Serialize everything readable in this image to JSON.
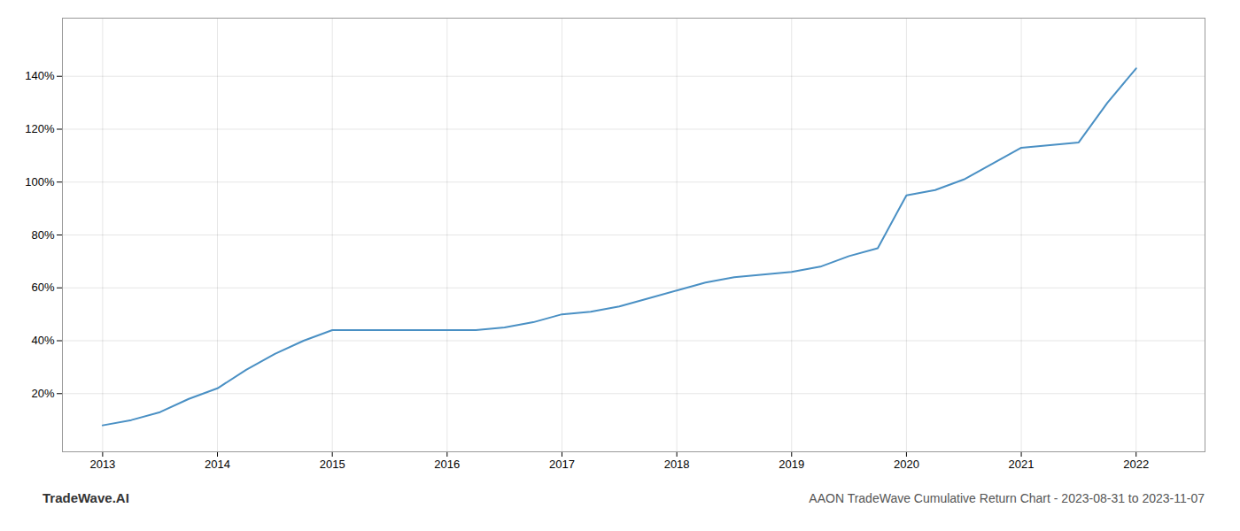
{
  "chart_data": {
    "type": "line",
    "title": "AAON TradeWave Cumulative Return Chart - 2023-08-31 to 2023-11-07",
    "annotations": [
      "TradeWave.AI"
    ],
    "x": [
      2013.0,
      2013.25,
      2013.5,
      2013.75,
      2014.0,
      2014.25,
      2014.5,
      2014.75,
      2015.0,
      2015.25,
      2015.5,
      2015.75,
      2016.0,
      2016.25,
      2016.5,
      2016.75,
      2017.0,
      2017.25,
      2017.5,
      2017.75,
      2018.0,
      2018.25,
      2018.5,
      2018.75,
      2019.0,
      2019.25,
      2019.5,
      2019.75,
      2020.0,
      2020.25,
      2020.5,
      2020.75,
      2021.0,
      2021.25,
      2021.5,
      2021.75,
      2022.0
    ],
    "values": [
      0.08,
      0.1,
      0.13,
      0.18,
      0.22,
      0.29,
      0.35,
      0.4,
      0.44,
      0.44,
      0.44,
      0.44,
      0.44,
      0.44,
      0.45,
      0.47,
      0.5,
      0.51,
      0.53,
      0.56,
      0.59,
      0.62,
      0.64,
      0.65,
      0.66,
      0.68,
      0.72,
      0.75,
      0.95,
      0.97,
      1.01,
      1.07,
      1.13,
      1.14,
      1.15,
      1.3,
      1.43
    ],
    "color": "#4a90c4",
    "xlim": [
      2012.65,
      2022.6
    ],
    "xticks": [
      2013,
      2014,
      2015,
      2016,
      2017,
      2018,
      2019,
      2020,
      2021,
      2022
    ],
    "ylim": [
      -0.02,
      1.62
    ],
    "yticks": [
      {
        "value": 0.2,
        "label": "20%"
      },
      {
        "value": 0.4,
        "label": "40%"
      },
      {
        "value": 0.6,
        "label": "60%"
      },
      {
        "value": 0.8,
        "label": "80%"
      },
      {
        "value": 1.0,
        "label": "100%"
      },
      {
        "value": 1.2,
        "label": "120%"
      },
      {
        "value": 1.4,
        "label": "140%"
      }
    ],
    "grid": true
  }
}
